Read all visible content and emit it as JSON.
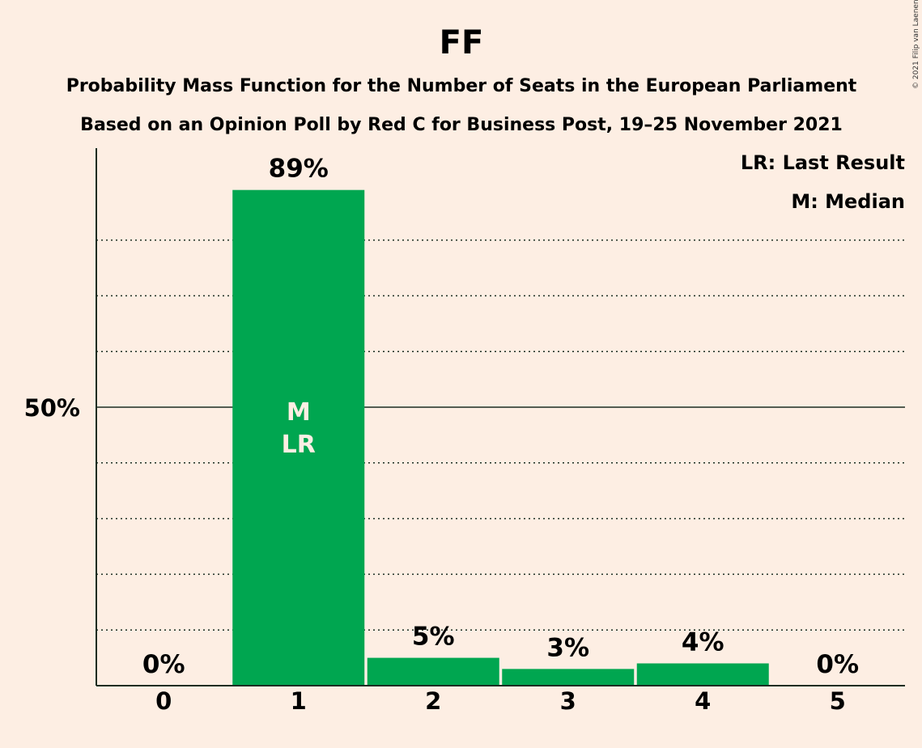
{
  "chart_data": {
    "type": "bar",
    "title": "FF",
    "subtitle_line1": "Probability Mass Function for the Number of Seats in the European Parliament",
    "subtitle_line2": "Based on an Opinion Poll by Red C for Business Post, 19–25 November 2021",
    "categories": [
      "0",
      "1",
      "2",
      "3",
      "4",
      "5"
    ],
    "values": [
      0,
      89,
      5,
      3,
      4,
      0
    ],
    "value_labels": [
      "0%",
      "89%",
      "5%",
      "3%",
      "4%",
      "0%"
    ],
    "ylim": [
      0,
      100
    ],
    "y_ticks": [
      {
        "value": 50,
        "label": "50%"
      }
    ],
    "grid_values": [
      10,
      20,
      30,
      40,
      60,
      70,
      80
    ],
    "median_seat_index": 1,
    "last_result_seat_index": 1,
    "median_marker": "M",
    "last_result_marker": "LR",
    "legend": [
      "LR: Last Result",
      "M: Median"
    ],
    "legend_position": "top-right",
    "bar_color": "#00a650",
    "copyright": "© 2021 Filip van Laenen"
  }
}
